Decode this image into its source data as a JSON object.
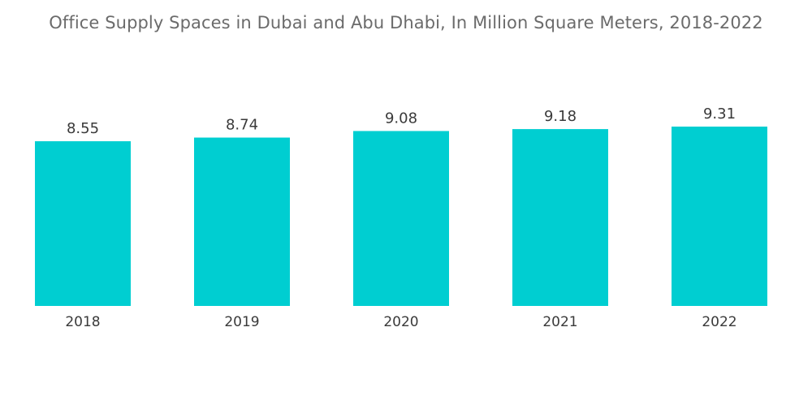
{
  "chart_data": {
    "type": "bar",
    "title": "Office Supply Spaces in Dubai and Abu Dhabi, In Million Square Meters, 2018-2022",
    "categories": [
      "2018",
      "2019",
      "2020",
      "2021",
      "2022"
    ],
    "values": [
      8.55,
      8.74,
      9.08,
      9.18,
      9.31
    ],
    "data_labels": [
      "8.55",
      "8.74",
      "9.08",
      "9.18",
      "9.31"
    ],
    "xlabel": "",
    "ylabel": "",
    "ylim": [
      0,
      9.31
    ],
    "grid": false,
    "legend": "none",
    "bar_color": "#00ced1"
  }
}
